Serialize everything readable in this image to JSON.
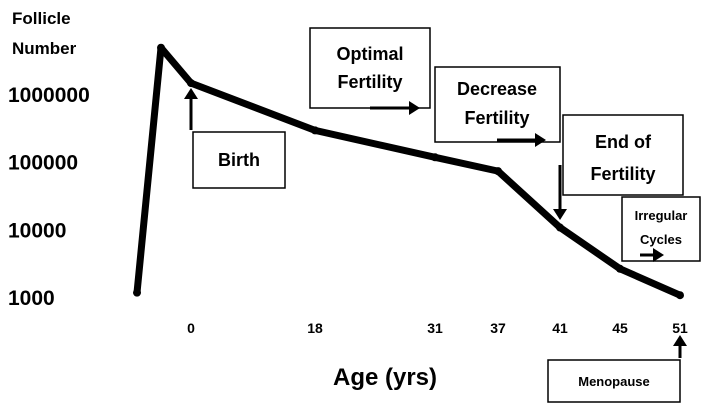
{
  "chart_data": {
    "type": "line",
    "title": "Follicle Number",
    "xlabel": "Age (yrs)",
    "ylabel": "Follicle Number",
    "yscale": "log",
    "ylim": [
      1000,
      5000000
    ],
    "y_tick_labels": [
      "1000000",
      "100000",
      "10000",
      "1000"
    ],
    "y_tick_values": [
      1000000,
      100000,
      10000,
      1000
    ],
    "x_tick_labels": [
      "0",
      "18",
      "31",
      "37",
      "41",
      "45",
      "51"
    ],
    "grid": false,
    "series": [
      {
        "x_label_positions": [
          "-9.5",
          "-5",
          "0",
          "18",
          "31",
          "37",
          "41",
          "45",
          "51"
        ],
        "values": [
          1200,
          5000000,
          1500000,
          300000,
          120000,
          75000,
          11000,
          2700,
          1100
        ]
      }
    ],
    "annotations": [
      {
        "text_lines": [
          "Birth"
        ],
        "points_to": "0"
      },
      {
        "text_lines": [
          "Optimal",
          "Fertility"
        ]
      },
      {
        "text_lines": [
          "Decrease",
          "Fertility"
        ]
      },
      {
        "text_lines": [
          "End of",
          "Fertility"
        ],
        "points_to": "41"
      },
      {
        "text_lines": [
          "Irregular",
          "Cycles"
        ]
      },
      {
        "text_lines": [
          "Menopause"
        ],
        "points_to": "51"
      }
    ],
    "line_color": "#000000"
  }
}
